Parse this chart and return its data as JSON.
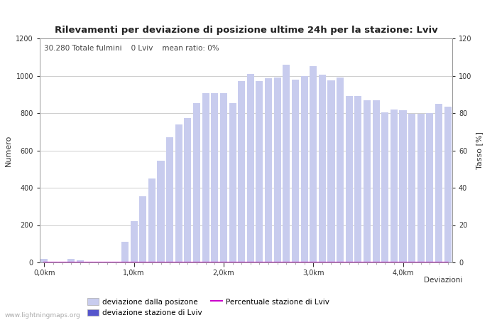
{
  "title": "Rilevamenti per deviazione di posizione ultime 24h per la stazione: Lviv",
  "subtitle": "30.280 Totale fulmini    0 Lviv    mean ratio: 0%",
  "xlabel": "Deviazioni",
  "ylabel_left": "Numero",
  "ylabel_right": "Tasso [%]",
  "bar_color_light": "#c8ccee",
  "bar_color_dark": "#5555cc",
  "line_color": "#cc00cc",
  "background_color": "#ffffff",
  "watermark": "www.lightningmaps.org",
  "ylim_left": [
    0,
    1200
  ],
  "ylim_right": [
    0,
    120
  ],
  "yticks_left": [
    0,
    200,
    400,
    600,
    800,
    1000,
    1200
  ],
  "yticks_right": [
    0,
    20,
    40,
    60,
    80,
    100,
    120
  ],
  "xtick_labels": [
    "0,0km",
    "1,0km",
    "2,0km",
    "3,0km",
    "4,0km"
  ],
  "xtick_positions": [
    0,
    10,
    20,
    30,
    40
  ],
  "bar_values": [
    20,
    5,
    5,
    20,
    10,
    5,
    5,
    5,
    5,
    110,
    220,
    355,
    450,
    545,
    670,
    740,
    775,
    855,
    905,
    905,
    905,
    855,
    970,
    1010,
    970,
    985,
    990,
    1060,
    980,
    1000,
    1050,
    1005,
    975,
    990,
    890,
    890,
    870,
    870,
    805,
    820,
    815,
    795,
    795,
    800,
    850,
    835
  ],
  "station_values": [
    0,
    0,
    0,
    0,
    0,
    0,
    0,
    0,
    0,
    0,
    0,
    0,
    0,
    0,
    0,
    0,
    0,
    0,
    0,
    0,
    0,
    0,
    0,
    0,
    0,
    0,
    0,
    0,
    0,
    0,
    0,
    0,
    0,
    0,
    0,
    0,
    0,
    0,
    0,
    0,
    0,
    0,
    0,
    0,
    0,
    0
  ],
  "legend_labels": [
    "deviazione dalla posizone",
    "deviazione stazione di Lviv",
    "Percentuale stazione di Lviv"
  ]
}
